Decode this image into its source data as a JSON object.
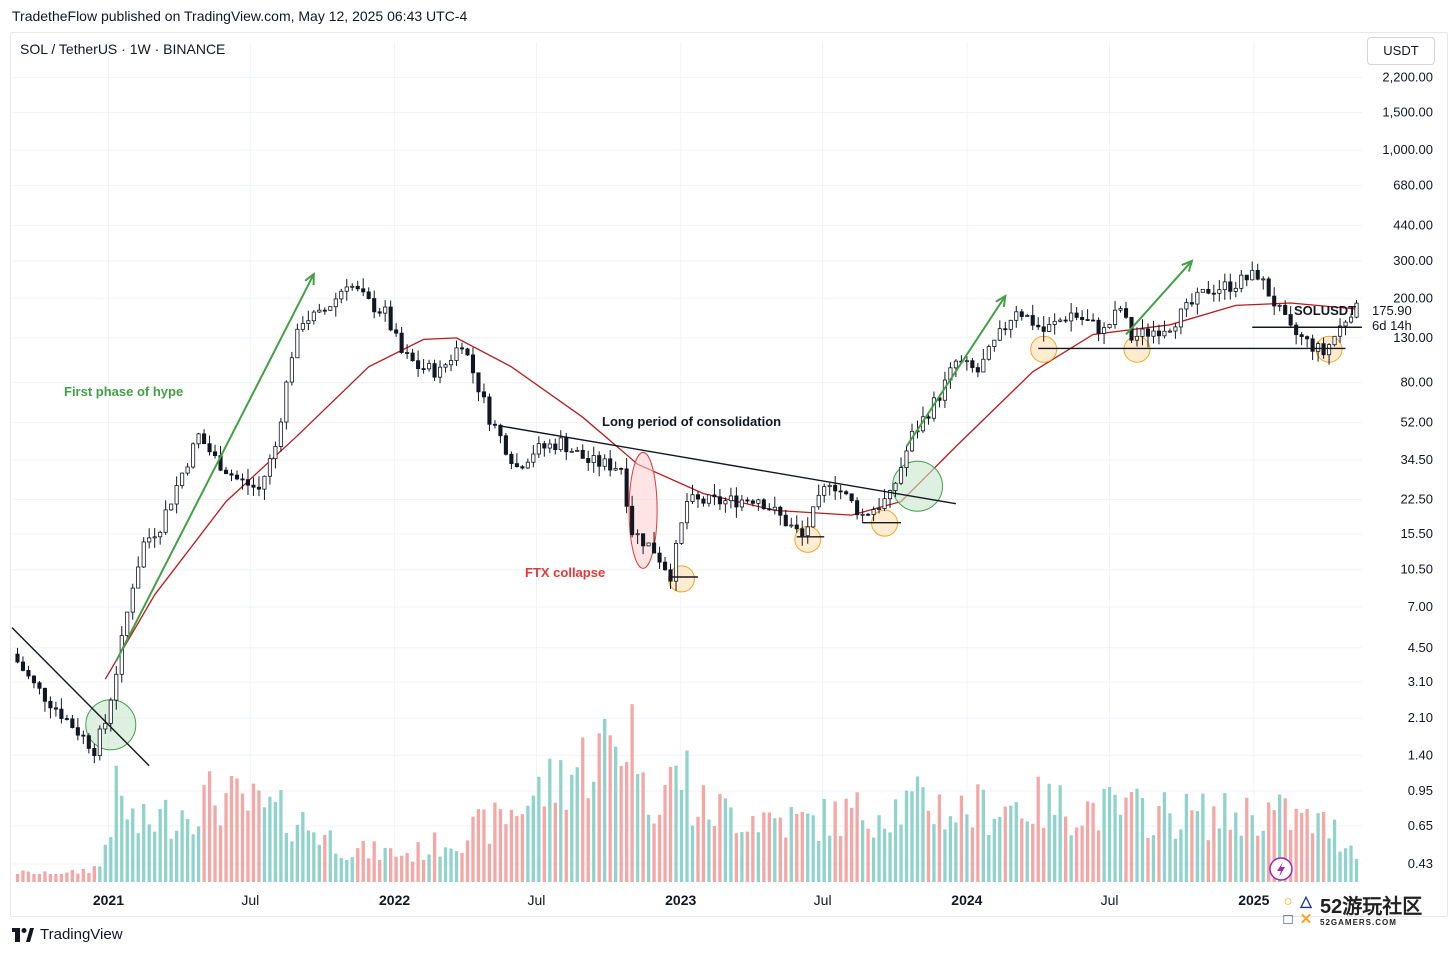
{
  "header": {
    "published": "TradetheFlow published on TradingView.com, May 12, 2025 06:43 UTC-4"
  },
  "toolbar": {
    "symbol": "SOL / TetherUS · 1W · BINANCE",
    "currency": "USDT"
  },
  "footer": {
    "brand": "TradingView",
    "site_badge": "52游玩社区",
    "site_url": "52GAMERS.COM"
  },
  "colors": {
    "up": "#26a69a",
    "down": "#ef5350",
    "vol_up": "#8fd3cc",
    "vol_down": "#f4a7a5",
    "ma": "#b71c1c",
    "annotation_green": "#43a047",
    "annotation_red": "#e53935",
    "highlight_green": "#c8e6c9",
    "highlight_orange": "#ffe0b2"
  },
  "chart_data": {
    "type": "candlestick",
    "symbol": "SOLUSDT",
    "timeframe": "1W",
    "y_scale": "log",
    "ylim": [
      0.35,
      2600
    ],
    "y_ticks": [
      "2,200.00",
      "1,500.00",
      "1,000.00",
      "680.00",
      "440.00",
      "300.00",
      "200.00",
      "130.00",
      "80.00",
      "52.00",
      "34.50",
      "22.50",
      "15.50",
      "10.50",
      "7.00",
      "4.50",
      "3.10",
      "2.10",
      "1.40",
      "0.95",
      "0.65",
      "0.43"
    ],
    "x_ticks": [
      "2021",
      "Jul",
      "2022",
      "Jul",
      "2023",
      "Jul",
      "2024",
      "Jul",
      "2025"
    ],
    "x_range": [
      "2020-08-31",
      "2025-05-19"
    ],
    "last_price": {
      "label": "SOLUSDT",
      "value": "175.90",
      "countdown": "6d 14h"
    },
    "price_path": [
      [
        "2020-09-07",
        4.2
      ],
      [
        "2020-10-05",
        3.0
      ],
      [
        "2020-11-09",
        2.2
      ],
      [
        "2020-12-21",
        1.5
      ],
      [
        "2021-01-04",
        2.0
      ],
      [
        "2021-01-18",
        3.5
      ],
      [
        "2021-02-08",
        9
      ],
      [
        "2021-02-22",
        14
      ],
      [
        "2021-03-15",
        17
      ],
      [
        "2021-04-12",
        30
      ],
      [
        "2021-05-03",
        45
      ],
      [
        "2021-05-24",
        35
      ],
      [
        "2021-06-21",
        28
      ],
      [
        "2021-07-19",
        25
      ],
      [
        "2021-08-09",
        40
      ],
      [
        "2021-08-30",
        110
      ],
      [
        "2021-09-13",
        160
      ],
      [
        "2021-10-04",
        165
      ],
      [
        "2021-10-25",
        200
      ],
      [
        "2021-11-08",
        240
      ],
      [
        "2021-12-06",
        190
      ],
      [
        "2021-12-27",
        170
      ],
      [
        "2022-01-17",
        110
      ],
      [
        "2022-02-07",
        95
      ],
      [
        "2022-03-07",
        90
      ],
      [
        "2022-04-04",
        125
      ],
      [
        "2022-05-09",
        55
      ],
      [
        "2022-06-13",
        32
      ],
      [
        "2022-07-04",
        38
      ],
      [
        "2022-08-08",
        42
      ],
      [
        "2022-09-12",
        34
      ],
      [
        "2022-10-24",
        32
      ],
      [
        "2022-11-07",
        16
      ],
      [
        "2022-12-05",
        13
      ],
      [
        "2022-12-26",
        10
      ],
      [
        "2023-01-16",
        22
      ],
      [
        "2023-03-06",
        22
      ],
      [
        "2023-04-17",
        23
      ],
      [
        "2023-06-12",
        15
      ],
      [
        "2023-07-17",
        28
      ],
      [
        "2023-08-28",
        19
      ],
      [
        "2023-10-02",
        23
      ],
      [
        "2023-10-30",
        45
      ],
      [
        "2023-12-04",
        70
      ],
      [
        "2023-12-25",
        100
      ],
      [
        "2024-01-22",
        90
      ],
      [
        "2024-03-11",
        180
      ],
      [
        "2024-04-15",
        140
      ],
      [
        "2024-05-20",
        170
      ],
      [
        "2024-07-01",
        140
      ],
      [
        "2024-07-22",
        180
      ],
      [
        "2024-08-05",
        130
      ],
      [
        "2024-09-23",
        150
      ],
      [
        "2024-11-11",
        220
      ],
      [
        "2024-12-09",
        230
      ],
      [
        "2025-01-13",
        260
      ],
      [
        "2025-02-24",
        140
      ],
      [
        "2025-04-07",
        110
      ],
      [
        "2025-05-12",
        175.9
      ]
    ],
    "ma_path": [
      [
        "2020-12-28",
        3.2
      ],
      [
        "2021-03-01",
        8
      ],
      [
        "2021-05-31",
        22
      ],
      [
        "2021-08-30",
        45
      ],
      [
        "2021-11-29",
        95
      ],
      [
        "2022-02-07",
        128
      ],
      [
        "2022-03-21",
        130
      ],
      [
        "2022-05-30",
        95
      ],
      [
        "2022-08-29",
        55
      ],
      [
        "2022-11-07",
        33
      ],
      [
        "2023-01-30",
        24
      ],
      [
        "2023-05-01",
        20
      ],
      [
        "2023-08-07",
        19
      ],
      [
        "2023-10-09",
        22
      ],
      [
        "2023-12-18",
        40
      ],
      [
        "2024-03-25",
        90
      ],
      [
        "2024-06-10",
        135
      ],
      [
        "2024-09-16",
        150
      ],
      [
        "2024-12-09",
        185
      ],
      [
        "2025-02-17",
        190
      ],
      [
        "2025-05-12",
        178
      ]
    ],
    "volume": [
      [
        "2020-09-07",
        0.06
      ],
      [
        "2020-10-05",
        0.05
      ],
      [
        "2020-11-09",
        0.05
      ],
      [
        "2020-12-21",
        0.1
      ],
      [
        "2021-01-11",
        0.55
      ],
      [
        "2021-02-08",
        0.35
      ],
      [
        "2021-05-17",
        0.55
      ],
      [
        "2021-08-30",
        0.4
      ],
      [
        "2021-11-08",
        0.2
      ],
      [
        "2022-01-24",
        0.18
      ],
      [
        "2022-05-09",
        0.38
      ],
      [
        "2022-06-13",
        0.5
      ],
      [
        "2022-11-07",
        1.0
      ],
      [
        "2022-11-14",
        0.55
      ],
      [
        "2023-01-09",
        0.7
      ],
      [
        "2023-01-16",
        0.48
      ],
      [
        "2023-06-12",
        0.38
      ],
      [
        "2023-07-17",
        0.42
      ],
      [
        "2023-10-30",
        0.5
      ],
      [
        "2023-11-13",
        0.52
      ],
      [
        "2023-12-11",
        0.45
      ],
      [
        "2024-03-11",
        0.5
      ],
      [
        "2024-08-05",
        0.45
      ],
      [
        "2024-11-18",
        0.42
      ],
      [
        "2025-01-20",
        0.45
      ],
      [
        "2025-04-07",
        0.35
      ],
      [
        "2025-05-12",
        0.2
      ]
    ],
    "annotations": [
      {
        "type": "text",
        "text": "First phase of hype",
        "color": "green"
      },
      {
        "type": "text",
        "text": "Long period of consolidation",
        "color": "dark"
      },
      {
        "type": "text",
        "text": "FTX collapse",
        "color": "red"
      }
    ],
    "grid": true,
    "legend": "none"
  }
}
